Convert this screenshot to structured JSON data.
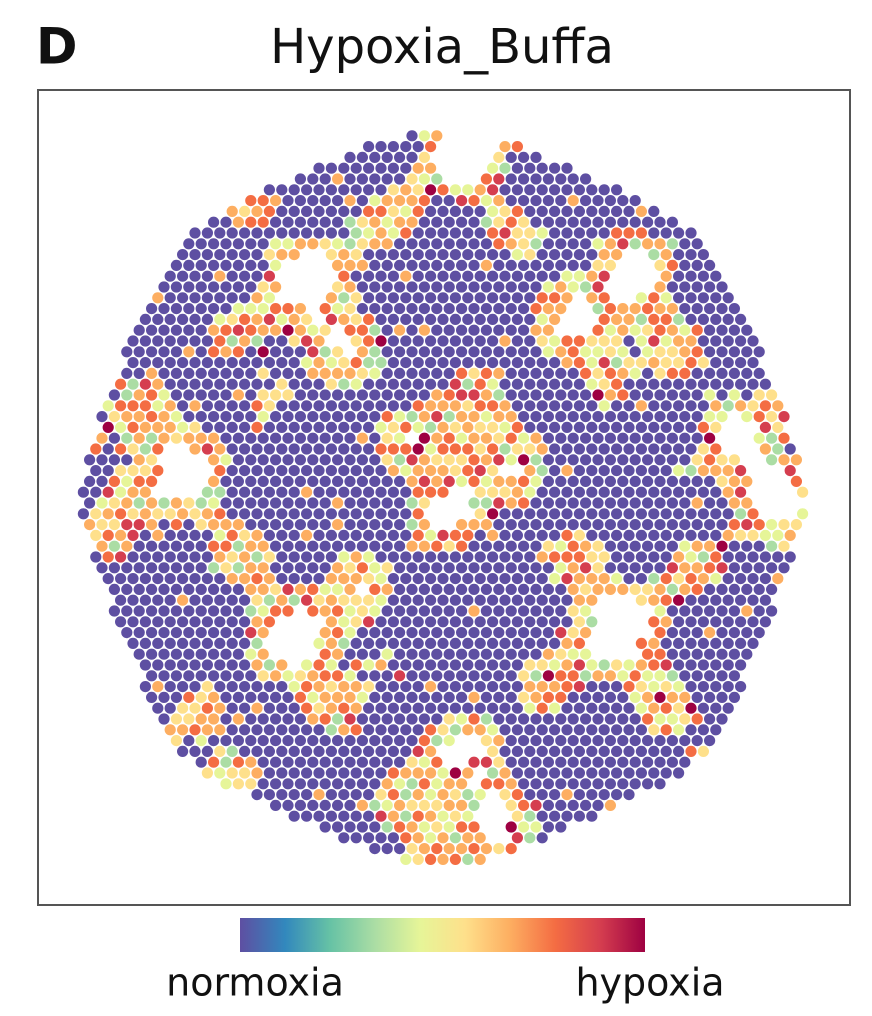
{
  "panel": {
    "label": "D",
    "title": "Hypoxia_Buffa"
  },
  "colorbar": {
    "low_label": "normoxia",
    "high_label": "hypoxia",
    "colors": [
      "#5e4fa2",
      "#3288bd",
      "#66c2a5",
      "#abdda4",
      "#e6f598",
      "#fee08b",
      "#fdae61",
      "#f46d43",
      "#d53e4f",
      "#9e0142"
    ]
  }
}
